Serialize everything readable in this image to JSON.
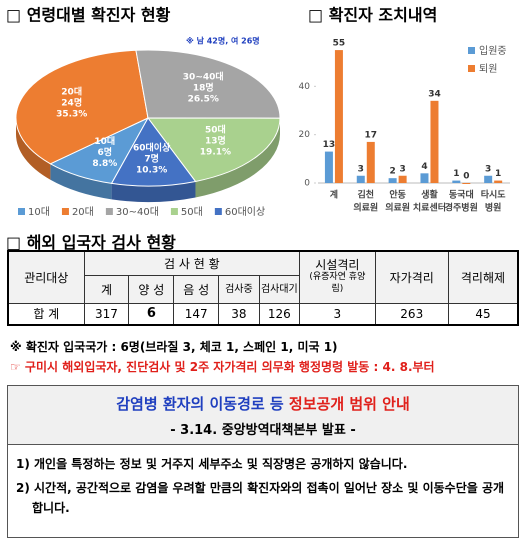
{
  "chart_data": [
    {
      "type": "pie",
      "title": "□ 연령대별 확진자 현황",
      "subtitle": "※ 남 42명, 여 26명",
      "categories": [
        "10대",
        "20대",
        "30~40대",
        "50대",
        "60대이상"
      ],
      "values": [
        8.8,
        35.3,
        26.5,
        19.1,
        10.3
      ],
      "value_labels": [
        "8.8%",
        "35.3%",
        "26.5%",
        "19.1%",
        "10.3%"
      ],
      "counts": [
        6,
        24,
        18,
        13,
        7
      ],
      "count_labels": [
        "6명",
        "24명",
        "18명",
        "13명",
        "7명"
      ],
      "colors": [
        "#5b9bd5",
        "#ed7d31",
        "#a5a5a5",
        "#a9d18e",
        "#4472c4"
      ],
      "legend": "bottom"
    },
    {
      "type": "bar",
      "title": "□ 확진자 조치내역",
      "categories": [
        [
          "계"
        ],
        [
          "김천",
          "의료원"
        ],
        [
          "안동",
          "의료원"
        ],
        [
          "생활",
          "치료센터"
        ],
        [
          "동국대",
          "경주병원"
        ],
        [
          "타시도",
          "병원"
        ]
      ],
      "series": [
        {
          "name": "입원중",
          "color": "#5b9bd5",
          "values": [
            13,
            3,
            2,
            4,
            1,
            3
          ]
        },
        {
          "name": "퇴원",
          "color": "#ed7d31",
          "values": [
            55,
            17,
            3,
            34,
            0,
            1
          ]
        }
      ],
      "ylim": [
        0,
        60
      ],
      "yticks": [
        0,
        20,
        40
      ],
      "legend": "top-right"
    }
  ],
  "table": {
    "title": "□ 해외 입국자 검사 현황",
    "header": [
      "관리대상",
      "검 사 현 황",
      "시설격리",
      "자가격리",
      "격리해제"
    ],
    "facility_note": "(유증자연 휴양림)",
    "subheader": [
      "계",
      "양 성",
      "음 성",
      "검사중",
      "검사대기"
    ],
    "rows": [
      [
        "합 계",
        317,
        6,
        147,
        38,
        126,
        3,
        263,
        45
      ]
    ]
  },
  "notes": [
    "※ 확진자 입국국가 : 6명(브라질 3, 체코 1, 스페인 1, 미국 1)",
    "☞ 구미시 해외입국자, 진단검사 및 2주 자가격리 의무화 행정명령 발동 : 4. 8.부터"
  ],
  "notice": {
    "title_blue": "감염병 환자의 이동경로 등",
    "title_red": "정보공개 범위 안내",
    "subtitle": "- 3.14. 중앙방역대책본부 발표 -",
    "items": [
      "1) 개인을 특정하는 정보 및 거주지 세부주소 및 직장명은 공개하지 않습니다.",
      "2) 시간적, 공간적으로 감염을 우려할 만큼의 확진자와의 접촉이 일어난 장소 및 이동수단을 공개합니다."
    ]
  }
}
